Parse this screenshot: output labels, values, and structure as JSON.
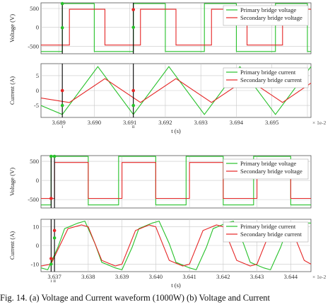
{
  "caption": "Fig. 14. (a) Voltage and Current waveform (1000W) (b) Voltage and Current",
  "colors": {
    "primary": "#27c12a",
    "secondary": "#e52626",
    "grid": "#c8c8c8",
    "marker": "#000000"
  },
  "chart_data": [
    {
      "type": "line",
      "panel": "a-voltage",
      "ylabel": "Voltage (V)",
      "xlim": [
        3.6885,
        3.6961
      ],
      "ylim": [
        -700,
        650
      ],
      "yticks": [
        -500,
        0,
        500
      ],
      "xticks": [
        3.689,
        3.69,
        3.691,
        3.692,
        3.693,
        3.694,
        3.695,
        3.696
      ],
      "xticklabels": [],
      "grid": true,
      "legend_position": "top-right",
      "series": [
        {
          "name": "Primary bridge voltage",
          "color": "#27c12a",
          "x": [
            3.6885,
            3.6891,
            3.6891,
            3.69,
            3.69,
            3.6911,
            3.6911,
            3.692,
            3.692,
            3.6931,
            3.6931,
            3.694,
            3.694,
            3.6951,
            3.6951,
            3.696,
            3.696,
            3.6961
          ],
          "y": [
            -640,
            -640,
            630,
            630,
            -640,
            -640,
            630,
            630,
            -640,
            -640,
            630,
            630,
            -640,
            -640,
            630,
            630,
            -640,
            -640
          ]
        },
        {
          "name": "Secondary bridge voltage",
          "color": "#e52626",
          "x": [
            3.6885,
            3.6893,
            3.6893,
            3.6903,
            3.6903,
            3.6913,
            3.6913,
            3.6923,
            3.6923,
            3.6933,
            3.6933,
            3.6943,
            3.6943,
            3.6953,
            3.6953,
            3.6961
          ],
          "y": [
            -470,
            -470,
            480,
            480,
            -470,
            -470,
            480,
            480,
            -470,
            -470,
            480,
            480,
            -470,
            -470,
            480,
            480
          ]
        }
      ],
      "markers": [
        {
          "x": 3.6891,
          "label": "I",
          "points": [
            {
              "y": 630,
              "series": "primary"
            },
            {
              "y": -10,
              "series": "primary"
            }
          ]
        },
        {
          "x": 3.6911,
          "label": "II",
          "points": [
            {
              "y": 470,
              "series": "secondary"
            },
            {
              "y": 0,
              "series": "primary"
            }
          ]
        }
      ]
    },
    {
      "type": "line",
      "panel": "a-current",
      "ylabel": "Current (A)",
      "xlabel": "t (s)",
      "exponent_label": "× 1e-2",
      "xlim": [
        3.6885,
        3.6961
      ],
      "ylim": [
        -9,
        9
      ],
      "yticks": [
        -5,
        0,
        5
      ],
      "xticks": [
        3.689,
        3.69,
        3.691,
        3.692,
        3.693,
        3.694,
        3.695,
        3.696
      ],
      "xticklabels": [
        "3.689",
        "3.690",
        "3.691",
        "3.692",
        "3.693",
        "3.694",
        "3.695",
        ""
      ],
      "grid": true,
      "legend_position": "top-right",
      "series": [
        {
          "name": "Primary bridge current",
          "color": "#27c12a",
          "x": [
            3.6885,
            3.6891,
            3.6901,
            3.6911,
            3.6921,
            3.6931,
            3.6941,
            3.6951,
            3.6961
          ],
          "y": [
            -5,
            -8,
            8,
            -8,
            8,
            -8,
            8,
            -8,
            8
          ]
        },
        {
          "name": "Secondary bridge current",
          "color": "#e52626",
          "x": [
            3.6885,
            3.6893,
            3.6903,
            3.6913,
            3.6923,
            3.6933,
            3.6943,
            3.6953,
            3.6961
          ],
          "y": [
            -2.5,
            -4,
            4,
            -4,
            4,
            -4,
            4,
            -4,
            2.5
          ]
        }
      ],
      "markers": [
        {
          "x": 3.6891,
          "label": "I",
          "points": [
            {
              "y": 0,
              "series": "secondary"
            },
            {
              "y": -5,
              "series": "primary"
            }
          ]
        },
        {
          "x": 3.6911,
          "label": "II",
          "points": [
            {
              "y": 0,
              "series": "secondary"
            },
            {
              "y": -5,
              "series": "primary"
            }
          ]
        }
      ]
    },
    {
      "type": "line",
      "panel": "b-voltage",
      "ylabel": "Voltage (V)",
      "xlim": [
        3.6366,
        3.6446
      ],
      "ylim": [
        -720,
        650
      ],
      "yticks": [
        -500,
        0,
        500
      ],
      "xticks": [
        3.637,
        3.638,
        3.639,
        3.64,
        3.641,
        3.642,
        3.643,
        3.644
      ],
      "xticklabels": [],
      "grid": true,
      "legend_position": "top-right",
      "series": [
        {
          "name": "Primary bridge voltage",
          "color": "#27c12a",
          "x": [
            3.6366,
            3.6369,
            3.6369,
            3.638,
            3.638,
            3.6389,
            3.6389,
            3.64,
            3.64,
            3.6409,
            3.6409,
            3.642,
            3.642,
            3.6429,
            3.6429,
            3.644,
            3.644,
            3.6446
          ],
          "y": [
            -640,
            -640,
            630,
            630,
            -640,
            -640,
            630,
            630,
            -640,
            -640,
            630,
            630,
            -640,
            -640,
            630,
            630,
            -640,
            -640
          ]
        },
        {
          "name": "Secondary bridge voltage",
          "color": "#e52626",
          "x": [
            3.6366,
            3.637,
            3.637,
            3.638,
            3.638,
            3.639,
            3.639,
            3.64,
            3.64,
            3.641,
            3.641,
            3.642,
            3.642,
            3.643,
            3.643,
            3.644,
            3.644,
            3.6446
          ],
          "y": [
            -470,
            -470,
            470,
            470,
            -470,
            -470,
            470,
            470,
            -470,
            -470,
            470,
            470,
            -470,
            -470,
            470,
            470,
            -470,
            -470
          ]
        }
      ],
      "markers": [
        {
          "x": 3.6369,
          "label": "I",
          "points": [
            {
              "y": 680,
              "series": "primary"
            },
            {
              "y": -470,
              "series": "secondary"
            }
          ]
        },
        {
          "x": 3.637,
          "label": "II",
          "points": [
            {
              "y": 680,
              "series": "primary"
            }
          ]
        }
      ]
    },
    {
      "type": "line",
      "panel": "b-current",
      "ylabel": "Current (A)",
      "xlabel": "t (s)",
      "exponent_label": "× 1e-2",
      "xlim": [
        3.6366,
        3.6446
      ],
      "ylim": [
        -14,
        14
      ],
      "yticks": [
        -10,
        0,
        10
      ],
      "xticks": [
        3.637,
        3.638,
        3.639,
        3.64,
        3.641,
        3.642,
        3.643,
        3.644
      ],
      "xticklabels": [
        "3.637",
        "3.638",
        "3.639",
        "3.640",
        "3.641",
        "3.642",
        "3.643",
        "3.644"
      ],
      "grid": true,
      "legend_position": "top-right",
      "series": [
        {
          "name": "Primary bridge current",
          "color": "#27c12a",
          "x": [
            3.6366,
            3.6368,
            3.6371,
            3.6373,
            3.6377,
            3.6379,
            3.6382,
            3.6384,
            3.6388,
            3.639,
            3.6393,
            3.6395,
            3.6399,
            3.6401,
            3.6404,
            3.6406,
            3.641,
            3.6412,
            3.6415,
            3.6417,
            3.6421,
            3.6423,
            3.6426,
            3.6428,
            3.6432,
            3.6434,
            3.6437,
            3.6439,
            3.6443,
            3.6446
          ],
          "y": [
            -12,
            -13,
            -1,
            9,
            12,
            13,
            1,
            -9,
            -12,
            -13,
            -1,
            9,
            12,
            13,
            1,
            -9,
            -12,
            -13,
            -1,
            9,
            12,
            13,
            1,
            -9,
            -12,
            -13,
            -1,
            9,
            12,
            12
          ]
        },
        {
          "name": "Secondary bridge current",
          "color": "#e52626",
          "x": [
            3.6366,
            3.6369,
            3.637,
            3.6374,
            3.6378,
            3.638,
            3.6384,
            3.6388,
            3.639,
            3.6394,
            3.6398,
            3.64,
            3.6404,
            3.6408,
            3.641,
            3.6414,
            3.6418,
            3.642,
            3.6424,
            3.6428,
            3.643,
            3.6434,
            3.6438,
            3.644,
            3.6444,
            3.6446
          ],
          "y": [
            -11,
            -10,
            -6,
            9,
            11,
            10,
            -8,
            -11,
            -10,
            8,
            11,
            10,
            -8,
            -11,
            -10,
            8,
            11,
            10,
            -8,
            -11,
            -10,
            8,
            11,
            10,
            -8,
            -10
          ]
        }
      ],
      "markers": [
        {
          "x": 3.6369,
          "label": "I",
          "points": [
            {
              "y": -7,
              "series": "secondary"
            },
            {
              "y": -10,
              "series": "primary"
            }
          ]
        },
        {
          "x": 3.637,
          "label": "II",
          "points": [
            {
              "y": 8,
              "series": "secondary"
            },
            {
              "y": 4,
              "series": "primary"
            }
          ]
        }
      ]
    }
  ]
}
